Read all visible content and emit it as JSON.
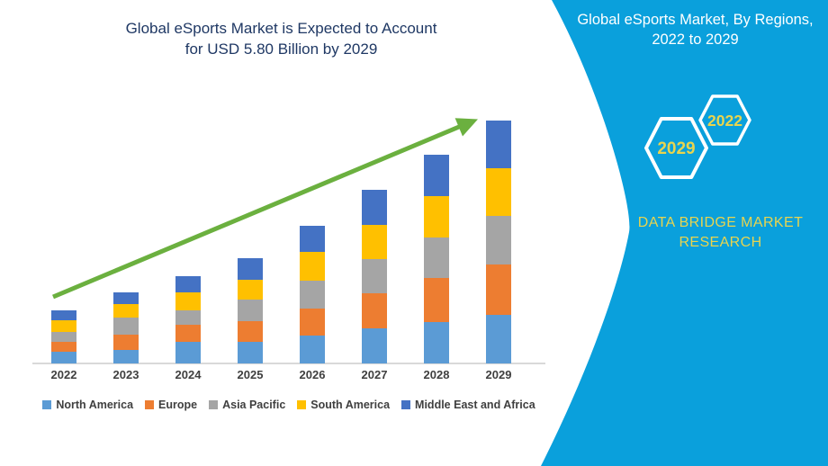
{
  "left_panel": {
    "title_line1": "Global eSports Market is Expected to Account",
    "title_line2": "for USD 5.80 Billion by 2029"
  },
  "right_panel": {
    "title_line1": "Global eSports Market, By Regions,",
    "title_line2": "2022 to 2029",
    "hexagons": [
      {
        "label": "2029"
      },
      {
        "label": "2022"
      }
    ],
    "brand_line1": "DATA BRIDGE MARKET",
    "brand_line2": "RESEARCH"
  },
  "colors": {
    "panel_cyan": "#0AA0DC",
    "accent_yellow": "#E8D44F",
    "title_navy": "#1F3864",
    "label_gray": "#3F3F3F",
    "axis_gray": "#D9D9D9",
    "arrow_green": "#6BB03F",
    "white": "#FFFFFF"
  },
  "chart_data": {
    "type": "bar",
    "stacked": true,
    "title": "Global eSports Market is Expected to Account for USD 5.80 Billion by 2029",
    "unit": "USD Billion",
    "categories": [
      "2022",
      "2023",
      "2024",
      "2025",
      "2026",
      "2027",
      "2028",
      "2029"
    ],
    "series": [
      {
        "name": "North America",
        "color": "#5B9BD5",
        "values": [
          0.29,
          0.33,
          0.51,
          0.52,
          0.66,
          0.84,
          0.99,
          1.17
        ]
      },
      {
        "name": "Europe",
        "color": "#ED7D31",
        "values": [
          0.23,
          0.36,
          0.42,
          0.48,
          0.64,
          0.84,
          1.04,
          1.19
        ]
      },
      {
        "name": "Asia Pacific",
        "color": "#A5A5A5",
        "values": [
          0.24,
          0.41,
          0.33,
          0.52,
          0.68,
          0.82,
          0.97,
          1.15
        ]
      },
      {
        "name": "South America",
        "color": "#FFC000",
        "values": [
          0.27,
          0.32,
          0.44,
          0.47,
          0.69,
          0.81,
          1.0,
          1.14
        ]
      },
      {
        "name": "Middle East and Africa",
        "color": "#4472C4",
        "values": [
          0.24,
          0.27,
          0.39,
          0.52,
          0.62,
          0.84,
          0.97,
          1.15
        ]
      }
    ],
    "totals": [
      1.27,
      1.69,
      2.09,
      2.51,
      3.29,
      4.15,
      4.97,
      5.8
    ],
    "ylim": [
      0,
      6
    ],
    "gridlines": false,
    "y_axis_visible": false,
    "legend_position": "bottom",
    "trend_arrow": true
  }
}
